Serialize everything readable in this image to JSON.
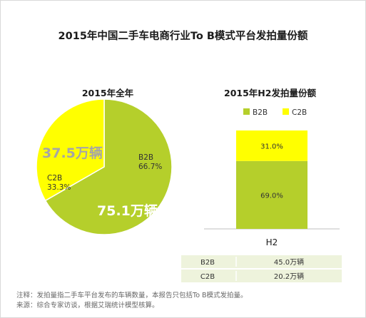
{
  "title": "2015年中国二手车电商行业To  B模式平台发拍量份额",
  "chart_data": [
    {
      "type": "pie",
      "title": "2015年全年",
      "slices": [
        {
          "name": "B2B",
          "percent": "66.7%",
          "volume": "75.1万辆",
          "value": 66.7,
          "color": "#b5cf2b"
        },
        {
          "name": "C2B",
          "percent": "33.3%",
          "volume": "37.5万辆",
          "value": 33.3,
          "color": "#ffff00"
        }
      ]
    },
    {
      "type": "bar",
      "stacked": true,
      "title": "2015年H2发拍量份额",
      "categories": [
        "H2"
      ],
      "legend": {
        "placement": "top",
        "items": [
          "B2B",
          "C2B"
        ]
      },
      "series": [
        {
          "name": "B2B",
          "values": [
            69.0
          ],
          "label": "69.0%",
          "color": "#b5cf2b"
        },
        {
          "name": "C2B",
          "values": [
            31.0
          ],
          "label": "31.0%",
          "color": "#ffff00"
        }
      ],
      "ylim": [
        0,
        100
      ],
      "table": [
        {
          "label": "B2B",
          "value": "45.0万辆"
        },
        {
          "label": "C2B",
          "value": "20.2万辆"
        }
      ]
    }
  ],
  "notes": [
    "注释：发拍量指二手车平台发布的车辆数量，本报告只包括To B模式发拍量。",
    "来源：综合专家访谈，根据艾瑞统计模型核算。"
  ]
}
